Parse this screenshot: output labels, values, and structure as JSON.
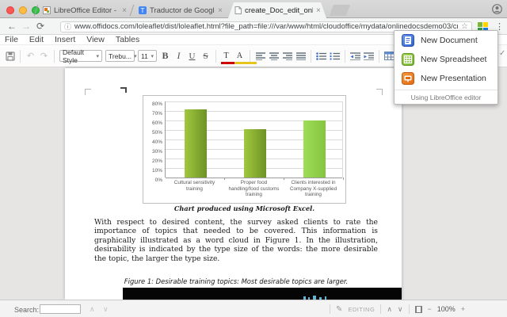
{
  "browser": {
    "tabs": [
      {
        "title": "LibreOffice Editor - Editar ele",
        "active": false
      },
      {
        "title": "Traductor de Google",
        "active": false
      },
      {
        "title": "create_Doc_edit_online.docx",
        "active": true
      }
    ],
    "url": "www.offidocs.com/loleaflet/dist/loleaflet.html?file_path=file:///var/www/html/cloudoffice/mydata/onlinedocsdemo03/create_Doc_edit_online.docx&user..."
  },
  "extension_menu": {
    "items": [
      {
        "label": "New Document"
      },
      {
        "label": "New Spreadsheet"
      },
      {
        "label": "New Presentation"
      }
    ],
    "footer": "Using LibreOffice editor"
  },
  "menubar": {
    "items": [
      "File",
      "Edit",
      "Insert",
      "View",
      "Tables"
    ]
  },
  "toolbar": {
    "style_value": "Default Style",
    "font_value": "Trebu...",
    "size_value": "11"
  },
  "document": {
    "paragraph": "With respect to desired content, the survey asked clients to rate the importance of topics that needed to be covered. This information is graphically illustrated as a word cloud in Figure 1. In the illustration, desirability is indicated by the type size of the words: the more desirable the topic, the larger the type size.",
    "chart_caption": "Chart produced using Microsoft Excel.",
    "figure_caption": "Figure 1: Desirable training topics: Most desirable topics are larger."
  },
  "chart_data": {
    "type": "bar",
    "title": "",
    "xlabel": "",
    "ylabel": "",
    "categories": [
      "Cultural sensitivity\ntraining",
      "Proper food\nhandling/food customs\ntraining",
      "Clients interested in\nCompany X-supplied\ntraining"
    ],
    "values": [
      72,
      51,
      60
    ],
    "value_format": "percent",
    "ylim": [
      0,
      80
    ],
    "ytick_step": 10,
    "grid": true,
    "legend": false,
    "bar_colors": [
      "#6f9226",
      "#6f9226",
      "#84c43e"
    ],
    "bar_colors_light": [
      "#a0c83e",
      "#a0c83e",
      "#9fdd57"
    ]
  },
  "statusbar": {
    "search_label": "Search:",
    "editing_label": "EDITING",
    "zoom_value": "100%"
  },
  "icons": {
    "back": "←",
    "forward": "→",
    "refresh": "⟳",
    "scheme_info": "ⓘ",
    "star": "☆",
    "menu": "⋮",
    "close": "×",
    "caret": "▾",
    "undo": "↶",
    "redo": "↷",
    "bold": "B",
    "italic": "I",
    "underline": "U",
    "strike": "S",
    "fontcolor": "T",
    "highlight": "A",
    "insert_info": "ⓘ",
    "check": "✓",
    "chev_up": "∧",
    "chev_down": "∨",
    "pencil": "✎",
    "minus": "−",
    "plus": "+"
  }
}
